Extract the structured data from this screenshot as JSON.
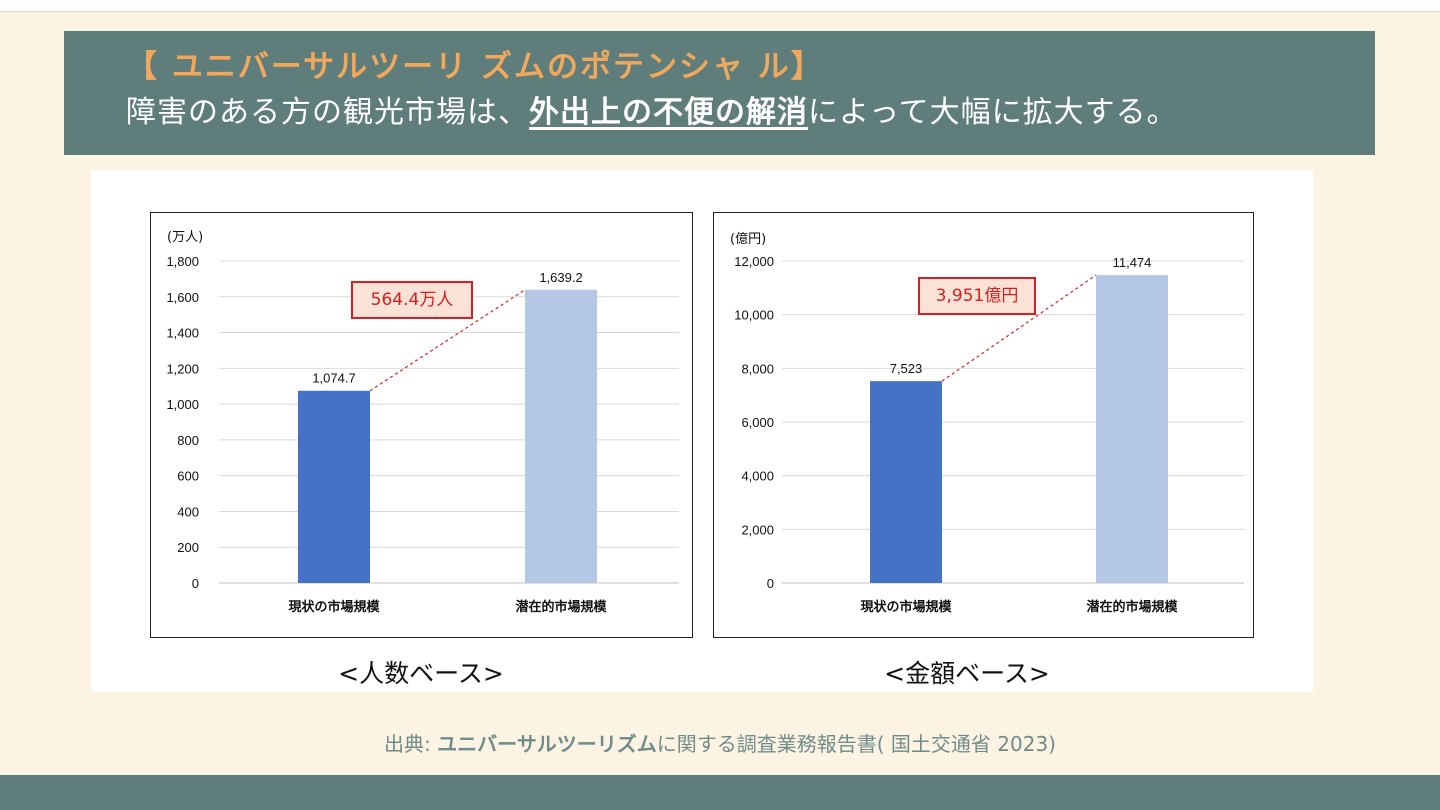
{
  "header": {
    "title": "【 ユニバーサルツーリ ズムのポテンシャ ル】",
    "subtitle_before": "障害のある方の観光市場は、",
    "subtitle_emphasis": "外出上の不便の解消",
    "subtitle_after": "によって大幅に拡大する。"
  },
  "charts": {
    "people": {
      "caption": "<人数ベース>",
      "callout": "564.4万人"
    },
    "amount": {
      "caption": "<金額ベース>",
      "callout": "3,951億円"
    }
  },
  "source": {
    "prefix": "出典: ",
    "bold": "ユニバーサルツーリズム",
    "suffix": "に関する調査業務報告書( 国土交通省 2023)"
  },
  "colors": {
    "current": "#4472c4",
    "potential": "#b4c7e7",
    "header_bg": "#5e7d7b",
    "title": "#f0a85c",
    "callout": "#d42020"
  },
  "chart_data": [
    {
      "type": "bar",
      "unit_label": "(万人)",
      "categories": [
        "現状の市場規模",
        "潜在的市場規模"
      ],
      "values": [
        1074.7,
        1639.2
      ],
      "value_labels": [
        "1,074.7",
        "1,639.2"
      ],
      "ylim": [
        0,
        1800
      ],
      "yticks": [
        0,
        200,
        400,
        600,
        800,
        1000,
        1200,
        1400,
        1600,
        1800
      ],
      "ytick_labels": [
        "0",
        "200",
        "400",
        "600",
        "800",
        "1,000",
        "1,200",
        "1,400",
        "1,600",
        "1,800"
      ],
      "difference_label": "564.4万人",
      "caption": "<人数ベース>"
    },
    {
      "type": "bar",
      "unit_label": "(億円)",
      "categories": [
        "現状の市場規模",
        "潜在的市場規模"
      ],
      "values": [
        7523,
        11474
      ],
      "value_labels": [
        "7,523",
        "11,474"
      ],
      "ylim": [
        0,
        12000
      ],
      "yticks": [
        0,
        2000,
        4000,
        6000,
        8000,
        10000,
        12000
      ],
      "ytick_labels": [
        "0",
        "2,000",
        "4,000",
        "6,000",
        "8,000",
        "10,000",
        "12,000"
      ],
      "difference_label": "3,951億円",
      "caption": "<金額ベース>"
    }
  ]
}
